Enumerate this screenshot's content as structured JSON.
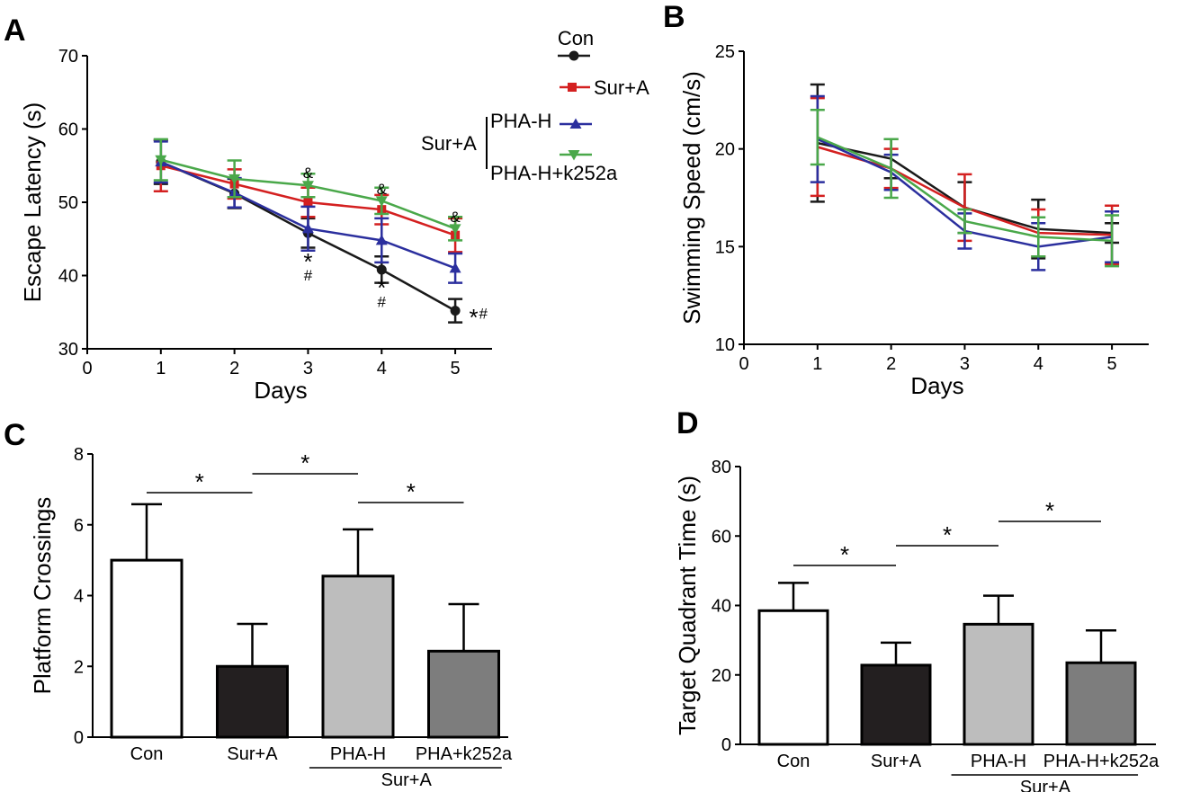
{
  "colors": {
    "con": "#1a1a1a",
    "sur": "#d42020",
    "phah": "#2b2f9e",
    "phak": "#4aa84a",
    "bar_con": "#ffffff",
    "bar_sur": "#231f20",
    "bar_phah": "#bdbdbd",
    "bar_phak": "#7d7d7d"
  },
  "chart_data": [
    {
      "panel": "A",
      "type": "line",
      "xlabel": "Days",
      "ylabel": "Escape Latency (s)",
      "xlim": [
        0,
        5.5
      ],
      "ylim": [
        30,
        70
      ],
      "x_ticks": [
        "0",
        "1",
        "2",
        "3",
        "4",
        "5"
      ],
      "y_ticks": [
        "30",
        "40",
        "50",
        "60",
        "70"
      ],
      "x": [
        1,
        2,
        3,
        4,
        5
      ],
      "series": [
        {
          "name": "Con",
          "values": [
            55.5,
            51.2,
            45.8,
            40.8,
            35.2
          ],
          "err": [
            3.0,
            2.0,
            2.0,
            1.8,
            1.6
          ],
          "marker": "circle"
        },
        {
          "name": "Sur+A",
          "values": [
            55.0,
            52.5,
            50.0,
            49.0,
            45.5
          ],
          "err": [
            3.5,
            2.0,
            2.0,
            2.0,
            2.3
          ],
          "marker": "square"
        },
        {
          "name": "PHA-H",
          "values": [
            55.5,
            51.3,
            46.4,
            44.8,
            41.0
          ],
          "err": [
            2.8,
            2.0,
            3.0,
            3.0,
            2.0
          ],
          "marker": "triangle-up"
        },
        {
          "name": "PHA-H+k252a",
          "values": [
            55.8,
            53.2,
            52.3,
            50.2,
            46.4
          ],
          "err": [
            2.8,
            2.5,
            1.6,
            1.8,
            1.6
          ],
          "marker": "triangle-down"
        }
      ],
      "annotations": [
        {
          "day": 3,
          "value": 53.8,
          "text": "&"
        },
        {
          "day": 4,
          "value": 51.6,
          "text": "&"
        },
        {
          "day": 5,
          "value": 47.8,
          "text": "&"
        },
        {
          "day": 3,
          "value": 41.8,
          "text": "*"
        },
        {
          "day": 3,
          "value": 39.8,
          "text": "#"
        },
        {
          "day": 4,
          "value": 38.2,
          "text": "*"
        },
        {
          "day": 4,
          "value": 36.2,
          "text": "#"
        },
        {
          "day": 5.25,
          "value": 34.2,
          "text": "*"
        },
        {
          "day": 5.38,
          "value": 34.6,
          "text": "#"
        }
      ],
      "legend": {
        "items": [
          "Con",
          "Sur+A",
          "PHA-H",
          "PHA-H+k252a"
        ],
        "group_label": "Sur+A",
        "placement": "top-right"
      }
    },
    {
      "panel": "B",
      "type": "line",
      "xlabel": "Days",
      "ylabel": "Swimming Speed (cm/s)",
      "xlim": [
        0,
        5.5
      ],
      "ylim": [
        10,
        25
      ],
      "x_ticks": [
        "0",
        "1",
        "2",
        "3",
        "4",
        "5"
      ],
      "y_ticks": [
        "10",
        "15",
        "20",
        "25"
      ],
      "x": [
        1,
        2,
        3,
        4,
        5
      ],
      "series": [
        {
          "name": "Con",
          "values": [
            20.3,
            19.5,
            17.0,
            15.9,
            15.7
          ],
          "err": [
            3.0,
            1.0,
            1.3,
            1.5,
            0.5
          ]
        },
        {
          "name": "Sur+A",
          "values": [
            20.1,
            19.0,
            17.0,
            15.7,
            15.6
          ],
          "err": [
            2.5,
            1.0,
            1.7,
            1.2,
            1.5
          ]
        },
        {
          "name": "PHA-H",
          "values": [
            20.5,
            18.8,
            15.8,
            15.0,
            15.5
          ],
          "err": [
            2.2,
            0.9,
            0.9,
            1.2,
            1.3
          ]
        },
        {
          "name": "PHA-H+k252a",
          "values": [
            20.6,
            19.0,
            16.3,
            15.5,
            15.3
          ],
          "err": [
            1.4,
            1.5,
            0.6,
            1.0,
            1.3
          ]
        }
      ]
    },
    {
      "panel": "C",
      "type": "bar",
      "ylabel": "Platform Crossings",
      "ylim": [
        0,
        8
      ],
      "y_ticks": [
        "0",
        "2",
        "4",
        "6",
        "8"
      ],
      "categories": [
        "Con",
        "Sur+A",
        "PHA-H",
        "PHA+k252a"
      ],
      "values": [
        5.0,
        2.0,
        4.55,
        2.43
      ],
      "err": [
        1.58,
        1.2,
        1.32,
        1.33
      ],
      "group_label": "Sur+A",
      "significance": [
        {
          "from": 0,
          "to": 1,
          "text": "*"
        },
        {
          "from": 1,
          "to": 2,
          "text": "*"
        },
        {
          "from": 2,
          "to": 3,
          "text": "*"
        }
      ]
    },
    {
      "panel": "D",
      "type": "bar",
      "ylabel": "Target Quadrant Time (s)",
      "ylim": [
        0,
        80
      ],
      "y_ticks": [
        "0",
        "20",
        "40",
        "60",
        "80"
      ],
      "categories": [
        "Con",
        "Sur+A",
        "PHA-H",
        "PHA-H+k252a"
      ],
      "values": [
        38.5,
        22.8,
        34.6,
        23.5
      ],
      "err": [
        8.0,
        6.5,
        8.2,
        9.3
      ],
      "group_label": "Sur+A",
      "significance": [
        {
          "from": 0,
          "to": 1,
          "text": "*"
        },
        {
          "from": 1,
          "to": 2,
          "text": "*"
        },
        {
          "from": 2,
          "to": 3,
          "text": "*"
        }
      ]
    }
  ],
  "panel_labels": [
    "A",
    "B",
    "C",
    "D"
  ]
}
